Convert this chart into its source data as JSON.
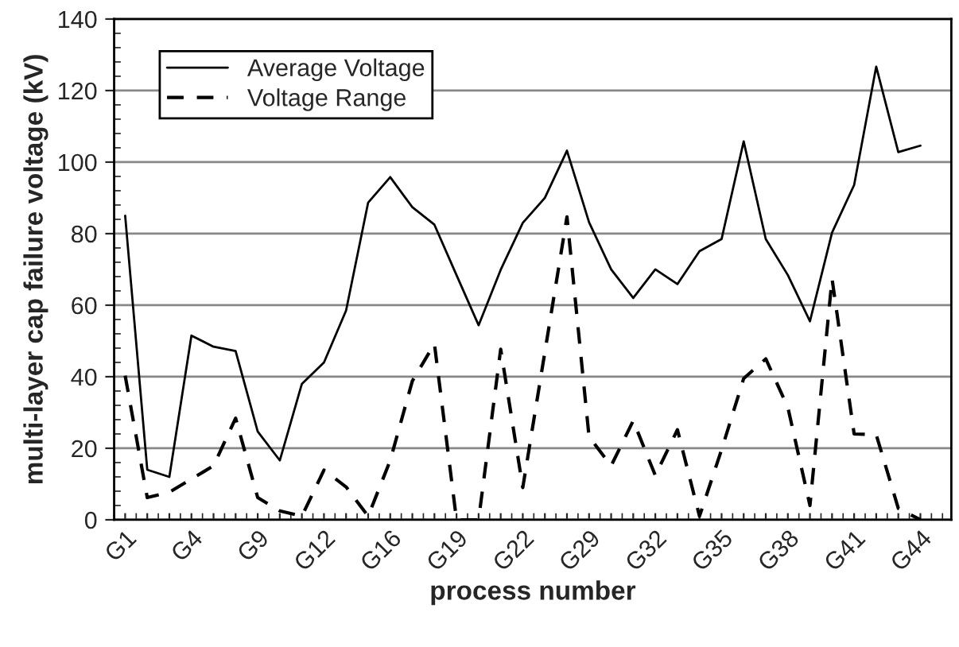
{
  "chart_data": {
    "type": "line",
    "xlabel": "process number",
    "ylabel": "multi-layer cap failure voltage (kV)",
    "categories": [
      "G1",
      null,
      null,
      "G4",
      null,
      null,
      "G9",
      null,
      null,
      "G12",
      null,
      null,
      "G16",
      null,
      null,
      "G19",
      null,
      null,
      "G22",
      null,
      null,
      "G29",
      null,
      null,
      "G32",
      null,
      null,
      "G35",
      null,
      null,
      "G38",
      null,
      null,
      "G41",
      null,
      null,
      "G44"
    ],
    "series": [
      {
        "name": "Average Voltage",
        "color": "#000000",
        "line_style": "solid",
        "values": [
          85,
          14,
          12,
          51.5,
          48.4,
          47.2,
          24.7,
          16.6,
          38,
          44,
          58.5,
          88.7,
          95.8,
          87.4,
          82.5,
          68.4,
          54.4,
          69.9,
          83,
          90,
          103.2,
          83.2,
          70,
          62,
          70,
          65.9,
          75.1,
          78.5,
          105.8,
          78.5,
          68.4,
          55.5,
          80.3,
          93.6,
          126.7,
          102.8,
          104.6
        ]
      },
      {
        "name": "Voltage Range",
        "color": "#000000",
        "line_style": "dashed",
        "values": [
          40.3,
          6.2,
          7.7,
          11.4,
          15.1,
          28.4,
          6.2,
          2.5,
          1,
          13.9,
          9.2,
          1,
          16.6,
          38.8,
          49.2,
          0,
          0,
          47.7,
          9,
          46.9,
          84.7,
          23.2,
          15.1,
          27.7,
          12.4,
          25.2,
          1,
          19.6,
          39.5,
          45,
          31.4,
          4,
          67.4,
          24,
          23.8,
          3.2,
          0
        ]
      }
    ],
    "ylim": [
      0,
      140
    ],
    "yticks": [
      0,
      20,
      40,
      60,
      80,
      100,
      120,
      140
    ],
    "grid": "y",
    "legend": "top left",
    "marker": "none"
  }
}
